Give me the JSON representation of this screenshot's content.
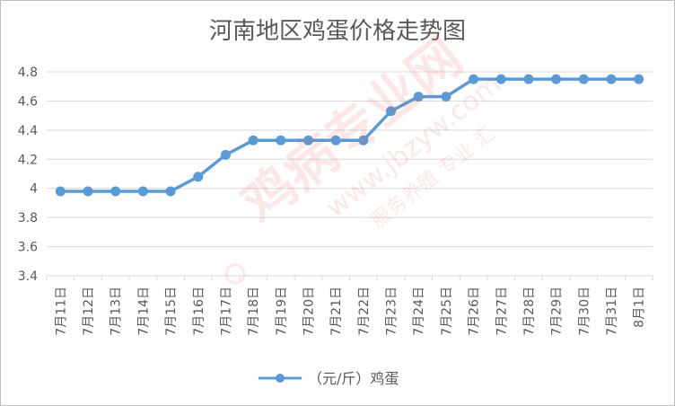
{
  "chart_data": {
    "type": "line",
    "title": "河南地区鸡蛋价格走势图",
    "categories": [
      "7月11日",
      "7月12日",
      "7月13日",
      "7月14日",
      "7月15日",
      "7月16日",
      "7月17日",
      "7月18日",
      "7月19日",
      "7月20日",
      "7月21日",
      "7月22日",
      "7月23日",
      "7月24日",
      "7月25日",
      "7月26日",
      "7月27日",
      "7月28日",
      "7月29日",
      "7月30日",
      "7月31日",
      "8月1日"
    ],
    "series": [
      {
        "name": "（元/斤）鸡蛋",
        "values": [
          3.98,
          3.98,
          3.98,
          3.98,
          3.98,
          4.08,
          4.23,
          4.33,
          4.33,
          4.33,
          4.33,
          4.33,
          4.53,
          4.63,
          4.63,
          4.75,
          4.75,
          4.75,
          4.75,
          4.75,
          4.75,
          4.75
        ]
      }
    ],
    "ylim": [
      3.4,
      4.8
    ],
    "yticks": [
      "4.8",
      "4.6",
      "4.4",
      "4.2",
      "4",
      "3.8",
      "3.6",
      "3.4"
    ],
    "grid": true,
    "legend_position": "bottom",
    "colors": {
      "series": "#5b9bd5",
      "grid": "#d9d9d9",
      "axis_text": "#595959",
      "watermark": "#e8534a"
    }
  },
  "watermark": {
    "main": "鸡病专业网",
    "url": "www.jbzyw.com",
    "slogan": "服务养殖 专业 汇"
  }
}
